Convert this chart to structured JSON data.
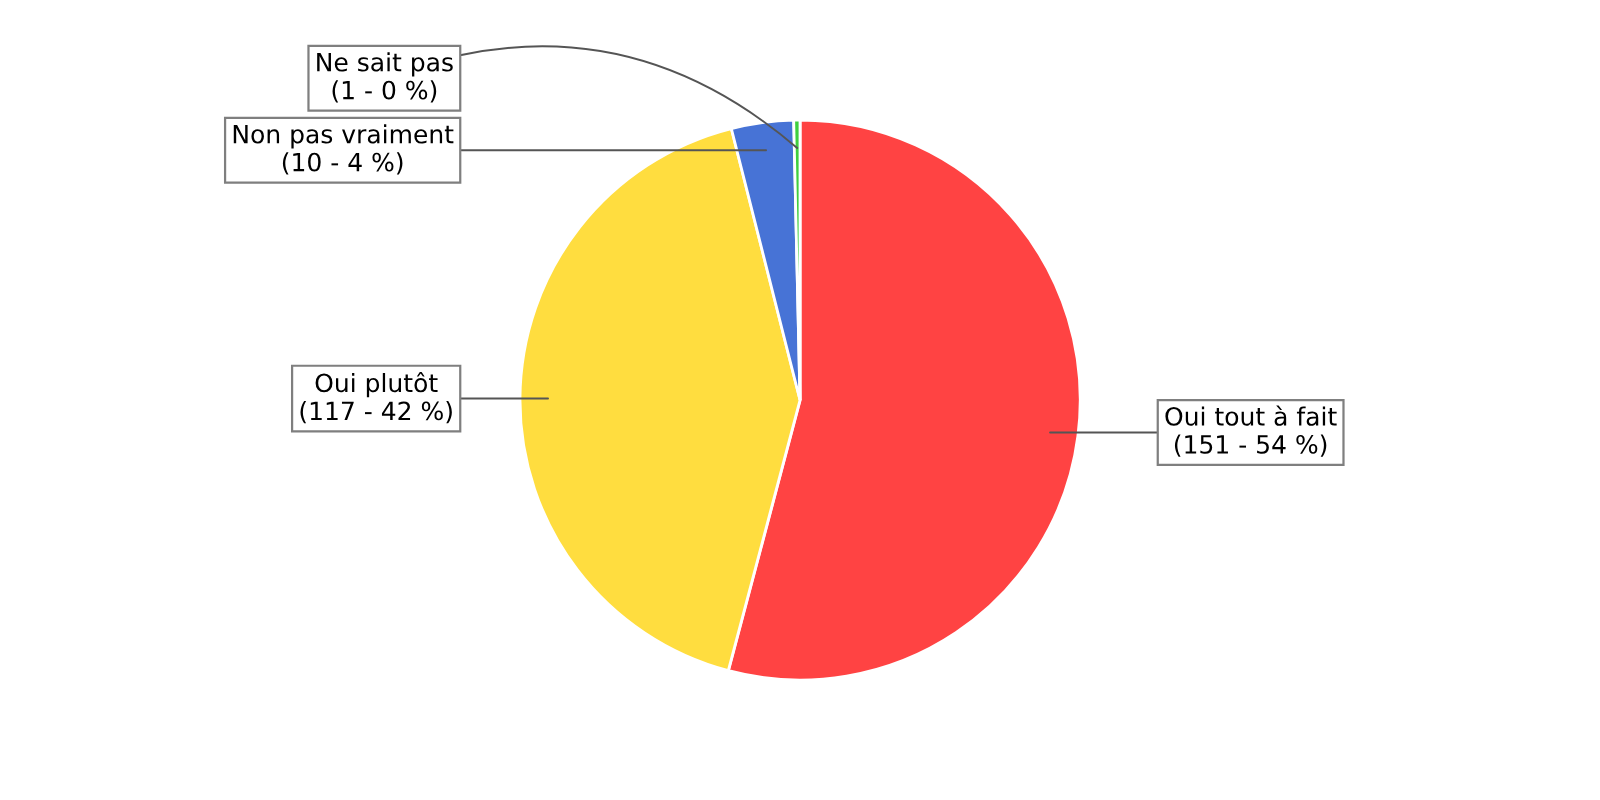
{
  "chart_data": {
    "type": "pie",
    "categories": [
      "Oui tout à fait",
      "Oui plutôt",
      "Non pas vraiment",
      "Ne sait pas"
    ],
    "values": [
      151,
      117,
      10,
      1
    ],
    "value_labels": [
      "(151 - 54 %)",
      "(117 - 42 %)",
      "(10 - 4 %)",
      "(1 - 0 %)"
    ],
    "colors": [
      "#ff4343",
      "#ffdd3f",
      "#4773d6",
      "#3fcf3f"
    ]
  }
}
